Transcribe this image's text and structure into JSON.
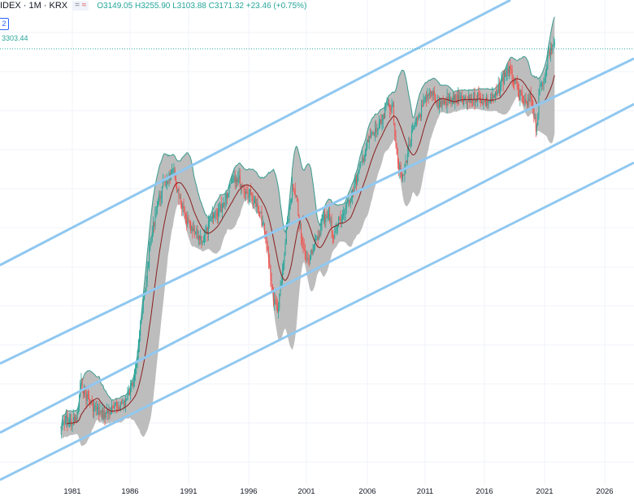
{
  "legend": {
    "symbol": "IDEX · 1M · KRX",
    "open": "O3149.05",
    "high": "H3255.90",
    "low": "L3103.88",
    "close": "C3171.32",
    "change": "+23.46 (+0.75%)",
    "pill_a": "=",
    "pill_b": "≈"
  },
  "indicator_tag": "2",
  "price_line_label": "3303.44",
  "colors": {
    "up": "#26a69a",
    "down": "#ef5350",
    "band": "#b2b2b2",
    "band_edge": "#3a9a8e",
    "ma": "#8b1e1e",
    "channel": "#90c8f0"
  },
  "chart_data": {
    "type": "candlestick",
    "x_ticks": [
      "1981",
      "1986",
      "1991",
      "1996",
      "2001",
      "2006",
      "2011",
      "2016",
      "2021",
      "2026"
    ],
    "last_price": 3303.44,
    "channel_lines": 4
  }
}
